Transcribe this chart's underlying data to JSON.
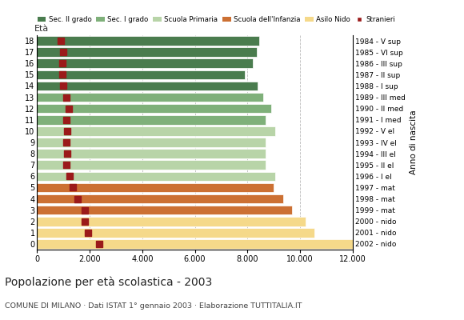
{
  "ages": [
    18,
    17,
    16,
    15,
    14,
    13,
    12,
    11,
    10,
    9,
    8,
    7,
    6,
    5,
    4,
    3,
    2,
    1,
    0
  ],
  "bar_values": [
    8450,
    8350,
    8200,
    7900,
    8400,
    8600,
    8900,
    8700,
    9050,
    8700,
    8700,
    8700,
    9050,
    9000,
    9350,
    9700,
    10200,
    10550,
    12100
  ],
  "stranieri": [
    900,
    1000,
    950,
    950,
    1000,
    1100,
    1200,
    1100,
    1150,
    1100,
    1150,
    1100,
    1250,
    1350,
    1550,
    1800,
    1800,
    1950,
    2350
  ],
  "bar_colors": [
    "#4a7c4e",
    "#4a7c4e",
    "#4a7c4e",
    "#4a7c4e",
    "#4a7c4e",
    "#7fb07a",
    "#7fb07a",
    "#7fb07a",
    "#b8d4a8",
    "#b8d4a8",
    "#b8d4a8",
    "#b8d4a8",
    "#b8d4a8",
    "#cc7033",
    "#cc7033",
    "#cc7033",
    "#f5d98a",
    "#f5d98a",
    "#f5d98a"
  ],
  "right_labels": [
    "1984 - V sup",
    "1985 - VI sup",
    "1986 - III sup",
    "1987 - II sup",
    "1988 - I sup",
    "1989 - III med",
    "1990 - II med",
    "1991 - I med",
    "1992 - V el",
    "1993 - IV el",
    "1994 - III el",
    "1995 - II el",
    "1996 - I el",
    "1997 - mat",
    "1998 - mat",
    "1999 - mat",
    "2000 - nido",
    "2001 - nido",
    "2002 - nido"
  ],
  "legend_labels": [
    "Sec. II grado",
    "Sec. I grado",
    "Scuola Primaria",
    "Scuola dell'Infanzia",
    "Asilo Nido",
    "Stranieri"
  ],
  "legend_colors": [
    "#4a7c4e",
    "#7fb07a",
    "#b8d4a8",
    "#cc7033",
    "#f5d98a",
    "#9b1a1a"
  ],
  "title": "Popolazione per età scolastica - 2003",
  "subtitle": "COMUNE DI MILANO · Dati ISTAT 1° gennaio 2003 · Elaborazione TUTTITALIA.IT",
  "eta_label": "Età",
  "right_ylabel": "Anno di nascita",
  "xlim": [
    0,
    12000
  ],
  "xticks": [
    0,
    2000,
    4000,
    6000,
    8000,
    10000,
    12000
  ],
  "xtick_labels": [
    "0",
    "2.000",
    "4.000",
    "6.000",
    "8.000",
    "10.000",
    "12.000"
  ],
  "bg_color": "#ffffff",
  "bar_height": 0.82,
  "stranieri_color": "#9b1a1a",
  "stranieri_size": 28
}
